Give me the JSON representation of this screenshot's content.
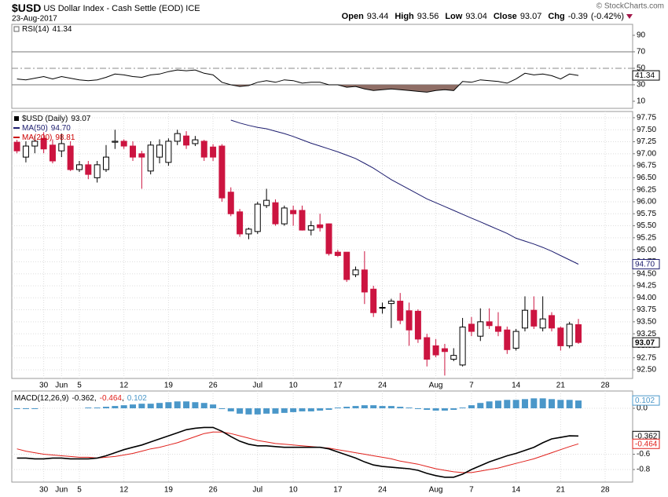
{
  "header": {
    "symbol": "$USD",
    "name": "US Dollar Index - Cash Settle (EOD) ICE",
    "date": "23-Aug-2017",
    "copyright": "© StockCharts.com",
    "quote": [
      {
        "label": "Open",
        "value": 93.44
      },
      {
        "label": "High",
        "value": 93.56
      },
      {
        "label": "Low",
        "value": 93.04
      },
      {
        "label": "Close",
        "value": 93.07
      }
    ],
    "change": {
      "label": "Chg",
      "value": -0.39,
      "percent": "(-0.42%)"
    }
  },
  "chart_data": [
    {
      "type": "line",
      "series": [
        {
          "name": "RSI(14)",
          "color": "#000000",
          "values": [
            37,
            36,
            38,
            40,
            37,
            40,
            38,
            36,
            35,
            36,
            39,
            43,
            42,
            40,
            39,
            42,
            43,
            46,
            48,
            47,
            48,
            44,
            42,
            33,
            30,
            28,
            29,
            33,
            35,
            33,
            36,
            35,
            32,
            33,
            33,
            30,
            30,
            27,
            28,
            25,
            23,
            24,
            25,
            24,
            23,
            22,
            21,
            23,
            24,
            23,
            34,
            33,
            36,
            35,
            34,
            32,
            37,
            44,
            42,
            43,
            41,
            37,
            43,
            41.34,
            null,
            null,
            null
          ]
        }
      ],
      "ylim": [
        1.4,
        103.3
      ],
      "yticks": [
        90,
        70,
        50,
        30,
        10
      ],
      "grid": false,
      "reference_lines": [
        {
          "value": 70,
          "style": "solid"
        },
        {
          "value": 50,
          "style": "dashed"
        },
        {
          "value": 30,
          "style": "solid"
        }
      ],
      "oversold_fill": {
        "below": 30,
        "color": "#8f6e66"
      }
    },
    {
      "type": "candlestick",
      "name": "$USD (Daily)",
      "categories": [
        null,
        null,
        null,
        "30",
        null,
        "Jun",
        null,
        "5",
        null,
        null,
        null,
        null,
        "12",
        null,
        null,
        null,
        null,
        "19",
        null,
        null,
        null,
        null,
        "26",
        null,
        null,
        null,
        null,
        "Jul",
        null,
        null,
        null,
        "10",
        null,
        null,
        null,
        null,
        "17",
        null,
        null,
        null,
        null,
        "24",
        null,
        null,
        null,
        null,
        null,
        "Aug",
        null,
        null,
        null,
        "7",
        null,
        null,
        null,
        null,
        "14",
        null,
        null,
        null,
        null,
        "21",
        null,
        null,
        null,
        null,
        "28"
      ],
      "open": [
        97.24,
        96.93,
        97.16,
        97.32,
        97.18,
        97.06,
        97.16,
        96.67,
        96.77,
        96.5,
        96.67,
        97.24,
        97.26,
        97.16,
        97.0,
        96.64,
        96.93,
        96.82,
        97.26,
        97.37,
        97.21,
        97.26,
        97.14,
        97.16,
        96.2,
        95.79,
        95.33,
        95.38,
        95.92,
        95.98,
        95.54,
        95.82,
        95.82,
        95.41,
        95.52,
        95.54,
        94.95,
        94.95,
        94.48,
        94.58,
        94.18,
        93.8,
        93.88,
        93.93,
        93.73,
        93.72,
        93.17,
        93.0,
        92.94,
        92.72,
        92.6,
        93.45,
        93.2,
        93.5,
        93.4,
        93.33,
        92.95,
        93.37,
        93.74,
        93.37,
        93.63,
        93.37,
        93.0,
        93.44,
        null,
        null,
        null
      ],
      "high": [
        97.29,
        97.26,
        97.37,
        97.45,
        97.3,
        97.42,
        97.26,
        96.85,
        96.85,
        96.85,
        97.18,
        97.5,
        97.3,
        97.26,
        97.06,
        97.26,
        97.3,
        97.32,
        97.5,
        97.47,
        97.37,
        97.29,
        97.2,
        97.2,
        96.3,
        95.85,
        95.46,
        96.0,
        96.27,
        96.05,
        95.92,
        95.92,
        95.92,
        95.6,
        95.75,
        95.55,
        95.0,
        94.95,
        94.65,
        94.97,
        94.25,
        93.9,
        93.98,
        94.1,
        93.9,
        93.76,
        93.25,
        93.14,
        93.04,
        92.95,
        93.58,
        93.6,
        93.78,
        93.78,
        93.7,
        93.4,
        93.35,
        94.03,
        94.03,
        94.03,
        93.7,
        93.4,
        93.5,
        93.56,
        null,
        null,
        null
      ],
      "low": [
        97.01,
        96.82,
        97.01,
        97.01,
        96.8,
        96.93,
        96.64,
        96.62,
        96.47,
        96.4,
        96.62,
        97.1,
        97.1,
        96.85,
        96.27,
        96.57,
        96.8,
        96.75,
        97.18,
        97.1,
        97.16,
        96.85,
        96.85,
        96.0,
        95.7,
        95.27,
        95.22,
        95.33,
        95.87,
        95.5,
        95.5,
        95.5,
        95.4,
        95.3,
        95.38,
        94.88,
        94.85,
        94.33,
        94.43,
        93.87,
        93.6,
        93.67,
        93.37,
        93.45,
        93.0,
        93.06,
        92.57,
        92.76,
        92.38,
        92.68,
        92.57,
        93.2,
        93.1,
        93.35,
        93.2,
        92.83,
        92.9,
        93.3,
        93.35,
        93.3,
        93.3,
        92.9,
        92.95,
        93.04,
        null,
        null,
        null
      ],
      "close": [
        97.06,
        97.16,
        97.26,
        97.1,
        96.85,
        97.21,
        96.67,
        96.77,
        96.57,
        96.77,
        96.93,
        97.26,
        97.16,
        96.93,
        96.93,
        97.18,
        97.18,
        97.26,
        97.42,
        97.18,
        97.29,
        96.93,
        96.93,
        96.08,
        95.75,
        95.33,
        95.43,
        95.95,
        96.03,
        95.54,
        95.87,
        95.75,
        95.41,
        95.5,
        95.46,
        94.92,
        94.88,
        94.38,
        94.58,
        94.12,
        93.69,
        93.8,
        93.93,
        93.53,
        93.33,
        93.14,
        92.72,
        92.81,
        92.88,
        92.8,
        93.39,
        93.3,
        93.5,
        93.42,
        93.3,
        92.92,
        93.3,
        93.74,
        93.41,
        93.56,
        93.37,
        93.0,
        93.45,
        93.07,
        null,
        null,
        null
      ],
      "up_color": "#000000",
      "down_color": "#cc1440",
      "legend_color": "#000000",
      "series": [
        {
          "name": "MA(50)",
          "color": "#1c1c6e",
          "legend_value_label": "94.70",
          "values": [
            null,
            null,
            null,
            null,
            null,
            null,
            null,
            null,
            null,
            null,
            null,
            null,
            null,
            null,
            null,
            null,
            null,
            null,
            null,
            null,
            null,
            null,
            null,
            null,
            97.7,
            97.64,
            97.59,
            97.55,
            97.52,
            97.47,
            97.42,
            97.36,
            97.29,
            97.22,
            97.16,
            97.1,
            97.04,
            96.97,
            96.9,
            96.8,
            96.7,
            96.58,
            96.46,
            96.36,
            96.26,
            96.16,
            96.06,
            95.98,
            95.9,
            95.82,
            95.74,
            95.66,
            95.58,
            95.5,
            95.42,
            95.34,
            95.24,
            95.18,
            95.12,
            95.05,
            94.97,
            94.88,
            94.79,
            94.7,
            null,
            null,
            null
          ]
        },
        {
          "name": "MA(200)",
          "color": "#cc0000",
          "legend_value": 98.81
        }
      ],
      "ylim": [
        92.32,
        97.88
      ],
      "yticks": [
        97.75,
        {
          "value": 97.5,
          "label": "97.50"
        },
        97.25,
        {
          "value": 97,
          "label": "97.00"
        },
        96.75,
        {
          "value": 96.5,
          "label": "96.50"
        },
        96.25,
        {
          "value": 96,
          "label": "96.00"
        },
        95.75,
        {
          "value": 95.5,
          "label": "95.50"
        },
        95.25,
        {
          "value": 95,
          "label": "95.00"
        },
        94.75,
        {
          "value": 94.5,
          "label": "94.50"
        },
        94.25,
        {
          "value": 94,
          "label": "94.00"
        },
        93.75,
        {
          "value": 93.5,
          "label": "93.50"
        },
        93.25,
        {
          "value": 93,
          "label": "93.00"
        },
        92.75,
        {
          "value": 92.5,
          "label": "92.50"
        }
      ],
      "grid": true
    },
    {
      "type": "macd",
      "categories": [
        null,
        null,
        null,
        "30",
        null,
        "Jun",
        null,
        "5",
        null,
        null,
        null,
        null,
        "12",
        null,
        null,
        null,
        null,
        "19",
        null,
        null,
        null,
        null,
        "26",
        null,
        null,
        null,
        null,
        "Jul",
        null,
        null,
        null,
        "10",
        null,
        null,
        null,
        null,
        "17",
        null,
        null,
        null,
        null,
        "24",
        null,
        null,
        null,
        null,
        null,
        "Aug",
        null,
        null,
        null,
        "7",
        null,
        null,
        null,
        null,
        "14",
        null,
        null,
        null,
        null,
        "21",
        null,
        null,
        null,
        null,
        "28"
      ],
      "name": "MACD(12,26,9)",
      "legend_separator": ",",
      "series": [
        {
          "name": "MACD",
          "color": "#000000",
          "values": [
            -0.65,
            -0.65,
            -0.66,
            -0.66,
            -0.65,
            -0.65,
            -0.66,
            -0.66,
            -0.66,
            -0.65,
            -0.62,
            -0.58,
            -0.54,
            -0.51,
            -0.48,
            -0.44,
            -0.4,
            -0.36,
            -0.32,
            -0.28,
            -0.26,
            -0.25,
            -0.25,
            -0.3,
            -0.37,
            -0.43,
            -0.47,
            -0.49,
            -0.49,
            -0.5,
            -0.51,
            -0.51,
            -0.51,
            -0.51,
            -0.51,
            -0.53,
            -0.57,
            -0.61,
            -0.65,
            -0.7,
            -0.74,
            -0.76,
            -0.77,
            -0.78,
            -0.79,
            -0.81,
            -0.85,
            -0.88,
            -0.9,
            -0.9,
            -0.86,
            -0.8,
            -0.75,
            -0.7,
            -0.66,
            -0.62,
            -0.59,
            -0.55,
            -0.51,
            -0.45,
            -0.4,
            -0.38,
            -0.36,
            -0.362,
            null,
            null,
            null
          ]
        },
        {
          "name": "Signal",
          "color": "#e0201b",
          "values": [
            -0.53,
            -0.56,
            -0.58,
            -0.6,
            -0.61,
            -0.62,
            -0.63,
            -0.64,
            -0.64,
            -0.65,
            -0.64,
            -0.63,
            -0.61,
            -0.59,
            -0.56,
            -0.53,
            -0.51,
            -0.48,
            -0.45,
            -0.41,
            -0.37,
            -0.33,
            -0.31,
            -0.31,
            -0.33,
            -0.36,
            -0.39,
            -0.42,
            -0.44,
            -0.46,
            -0.47,
            -0.48,
            -0.49,
            -0.5,
            -0.51,
            -0.52,
            -0.54,
            -0.56,
            -0.58,
            -0.6,
            -0.62,
            -0.64,
            -0.66,
            -0.69,
            -0.71,
            -0.73,
            -0.76,
            -0.79,
            -0.81,
            -0.83,
            -0.84,
            -0.84,
            -0.82,
            -0.8,
            -0.78,
            -0.75,
            -0.72,
            -0.69,
            -0.66,
            -0.62,
            -0.58,
            -0.54,
            -0.5,
            -0.464,
            null,
            null,
            null
          ]
        },
        {
          "name": "Histogram",
          "color": "#4a97c9",
          "values": [
            -0.01,
            -0.01,
            -0.01,
            0.0,
            0.0,
            0.0,
            0.0,
            0.0,
            0.01,
            0.01,
            0.02,
            0.03,
            0.04,
            0.05,
            0.06,
            0.06,
            0.07,
            0.08,
            0.09,
            0.09,
            0.08,
            0.07,
            0.05,
            -0.01,
            -0.04,
            -0.07,
            -0.08,
            -0.08,
            -0.07,
            -0.07,
            -0.06,
            -0.05,
            -0.04,
            -0.04,
            -0.03,
            -0.02,
            0.01,
            0.02,
            0.03,
            0.04,
            0.04,
            0.03,
            0.03,
            0.02,
            0.01,
            -0.01,
            -0.02,
            -0.03,
            -0.03,
            -0.02,
            0.01,
            0.04,
            0.07,
            0.09,
            0.1,
            0.11,
            0.11,
            0.12,
            0.13,
            0.13,
            0.12,
            0.11,
            0.11,
            0.102,
            null,
            null,
            null
          ]
        }
      ],
      "ylim": [
        -0.964,
        0.226
      ],
      "yticks": [
        {
          "value": 0,
          "label": "0.0"
        },
        -0.6,
        -0.8
      ],
      "grid": true
    }
  ]
}
